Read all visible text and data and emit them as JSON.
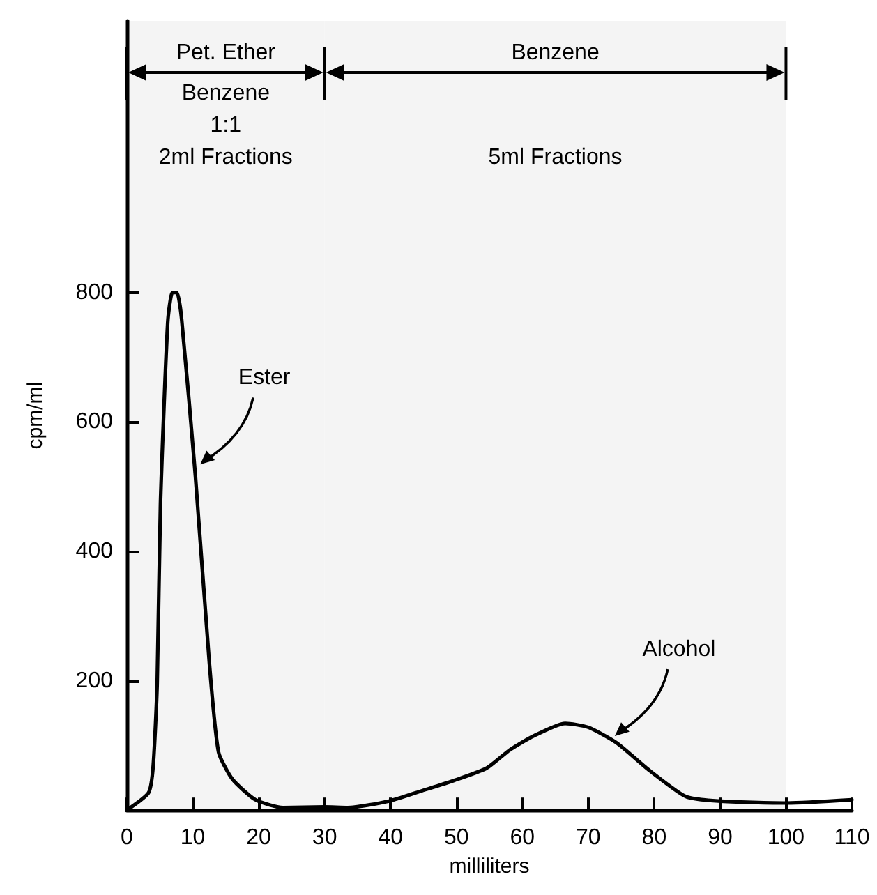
{
  "chart_data": {
    "type": "line",
    "xlabel": "milliliters",
    "ylabel": "cpm/ml",
    "x": [
      0,
      3.3,
      4,
      4.6,
      5.1,
      6.2,
      6.9,
      7.6,
      8.3,
      10.4,
      12.5,
      13.9,
      16,
      19.5,
      23.7,
      30,
      33.5,
      39.8,
      44.8,
      49.7,
      54.6,
      58.1,
      61.6,
      66.5,
      70,
      74.3,
      79.2,
      84.8,
      89.7,
      100.2,
      110
    ],
    "series": [
      {
        "color": "#000000",
        "values": [
          0,
          27,
          69,
          195,
          474,
          754,
          800,
          800,
          760,
          516,
          229,
          90,
          48,
          16,
          4,
          5,
          4,
          14,
          30,
          46,
          65,
          93,
          114,
          134,
          128,
          104,
          62,
          21,
          14,
          11,
          16
        ]
      }
    ],
    "xlim": [
      0,
      110
    ],
    "xticks": [
      0,
      10,
      20,
      30,
      40,
      50,
      60,
      70,
      80,
      90,
      100,
      110
    ],
    "ylim": [
      0,
      1220
    ],
    "yticks": [
      200,
      400,
      600,
      800
    ],
    "bands": [
      {
        "axis": "x",
        "from": 0,
        "to": 30,
        "label": "Pet. Ether\nBenzene\n1:1",
        "color": "#f4f4f4"
      },
      {
        "axis": "x",
        "from": 30,
        "to": 100,
        "label": "Benzene",
        "color": "#f4f4f4"
      }
    ],
    "annotations": [
      "2ml Fractions",
      "5ml Fractions",
      {
        "text": "Ester",
        "x": 10.7,
        "y": 530
      },
      {
        "text": "Alcohol",
        "x": 73.6,
        "y": 110
      }
    ],
    "grid": false,
    "marker": "none",
    "line_style": "solid"
  }
}
